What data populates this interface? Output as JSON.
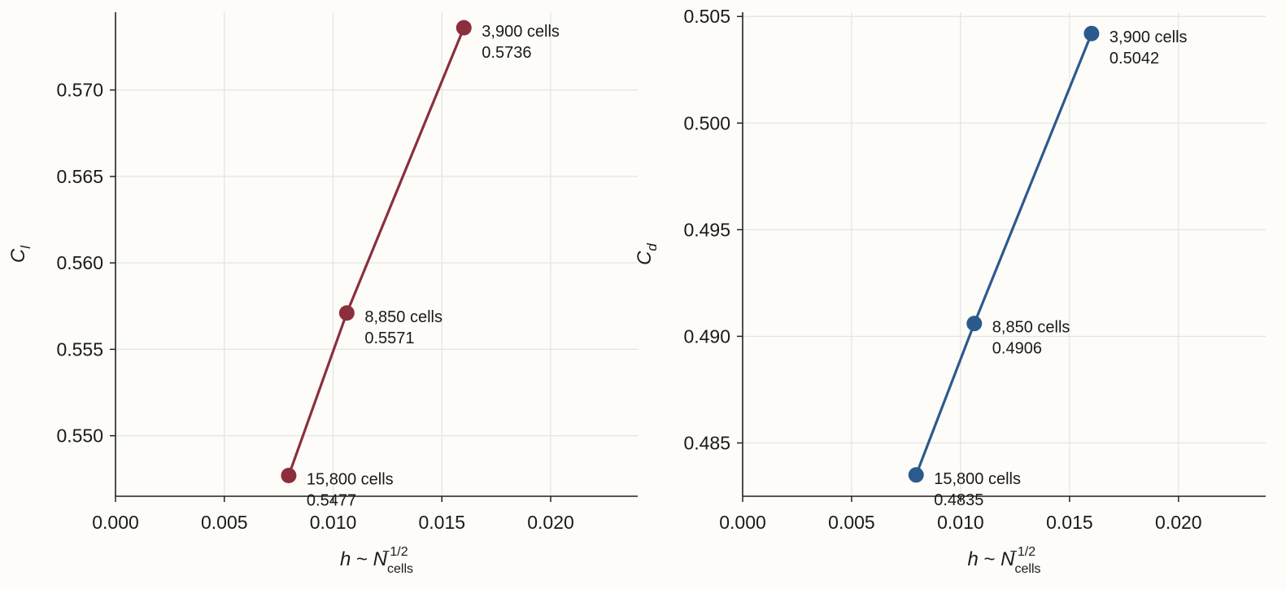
{
  "chart_data": [
    {
      "type": "line",
      "xlabel": "h ~ N_cells^-1/2",
      "ylabel": "C_l",
      "xlim": [
        0.0,
        0.024
      ],
      "ylim": [
        0.5465,
        0.5745
      ],
      "xticks": [
        "0.000",
        "0.005",
        "0.010",
        "0.015",
        "0.020"
      ],
      "yticks": [
        "0.550",
        "0.555",
        "0.560",
        "0.565",
        "0.570"
      ],
      "grid": true,
      "color": "#8b2f3c",
      "series": [
        {
          "x": [
            0.00796,
            0.01063,
            0.01601
          ],
          "y": [
            0.5477,
            0.5571,
            0.5736
          ],
          "labels": [
            "15,800 cells",
            "8,850 cells",
            "3,900 cells"
          ],
          "value_labels": [
            "0.5477",
            "0.5571",
            "0.5736"
          ]
        }
      ]
    },
    {
      "type": "line",
      "xlabel": "h ~ N_cells^-1/2",
      "ylabel": "C_d",
      "xlim": [
        0.0,
        0.024
      ],
      "ylim": [
        0.4825,
        0.5052
      ],
      "xticks": [
        "0.000",
        "0.005",
        "0.010",
        "0.015",
        "0.020"
      ],
      "yticks": [
        "0.485",
        "0.490",
        "0.495",
        "0.500",
        "0.505"
      ],
      "grid": true,
      "color": "#2d5a8c",
      "series": [
        {
          "x": [
            0.00796,
            0.01063,
            0.01601
          ],
          "y": [
            0.4835,
            0.4906,
            0.5042
          ],
          "labels": [
            "15,800 cells",
            "8,850 cells",
            "3,900 cells"
          ],
          "value_labels": [
            "0.4835",
            "0.4906",
            "0.5042"
          ]
        }
      ]
    }
  ]
}
